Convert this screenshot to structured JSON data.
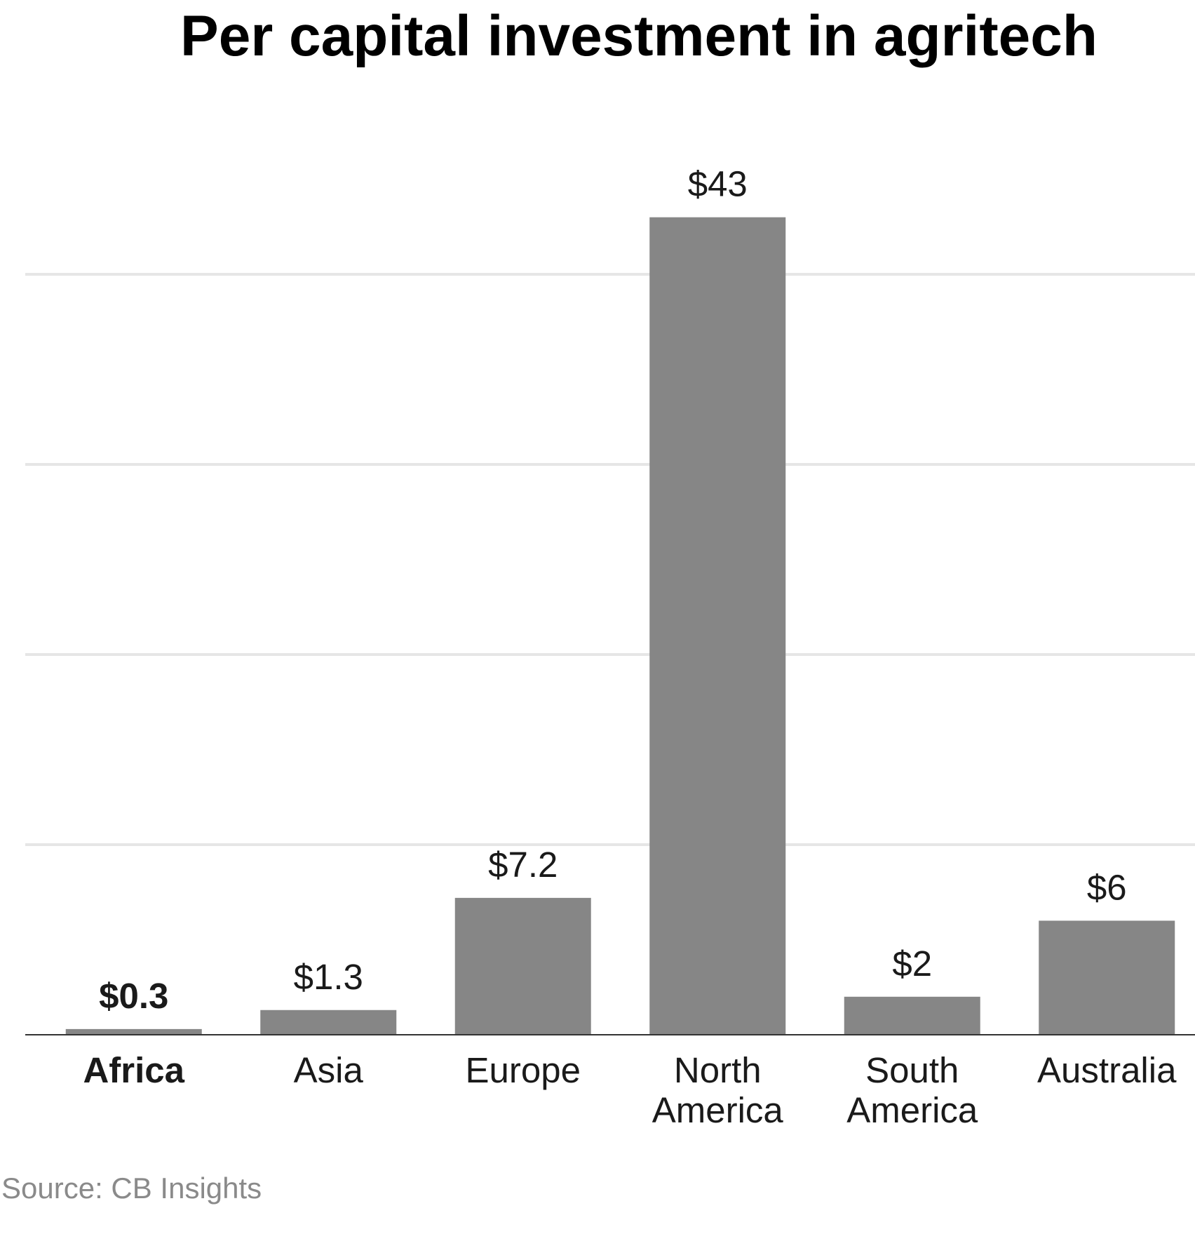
{
  "chart_data": {
    "type": "bar",
    "title": "Per capital investment in agritech",
    "categories": [
      [
        "Africa"
      ],
      [
        "Asia"
      ],
      [
        "Europe"
      ],
      [
        "North",
        "America"
      ],
      [
        "South",
        "America"
      ],
      [
        "Australia"
      ]
    ],
    "values": [
      0.3,
      1.3,
      7.2,
      43,
      2,
      6
    ],
    "value_labels": [
      "$0.3",
      "$1.3",
      "$7.2",
      "$43",
      "$2",
      "$6"
    ],
    "highlight_category": "Africa",
    "ylim": [
      0,
      45
    ],
    "gridlines": [
      10,
      20,
      30,
      40
    ],
    "grid": true,
    "y_tick_labels_shown": false,
    "xlabel": "",
    "ylabel": "",
    "bar_color": "#868686",
    "grid_color": "#e6e6e6",
    "axis_color": "#333333"
  },
  "source": "Source: CB Insights"
}
